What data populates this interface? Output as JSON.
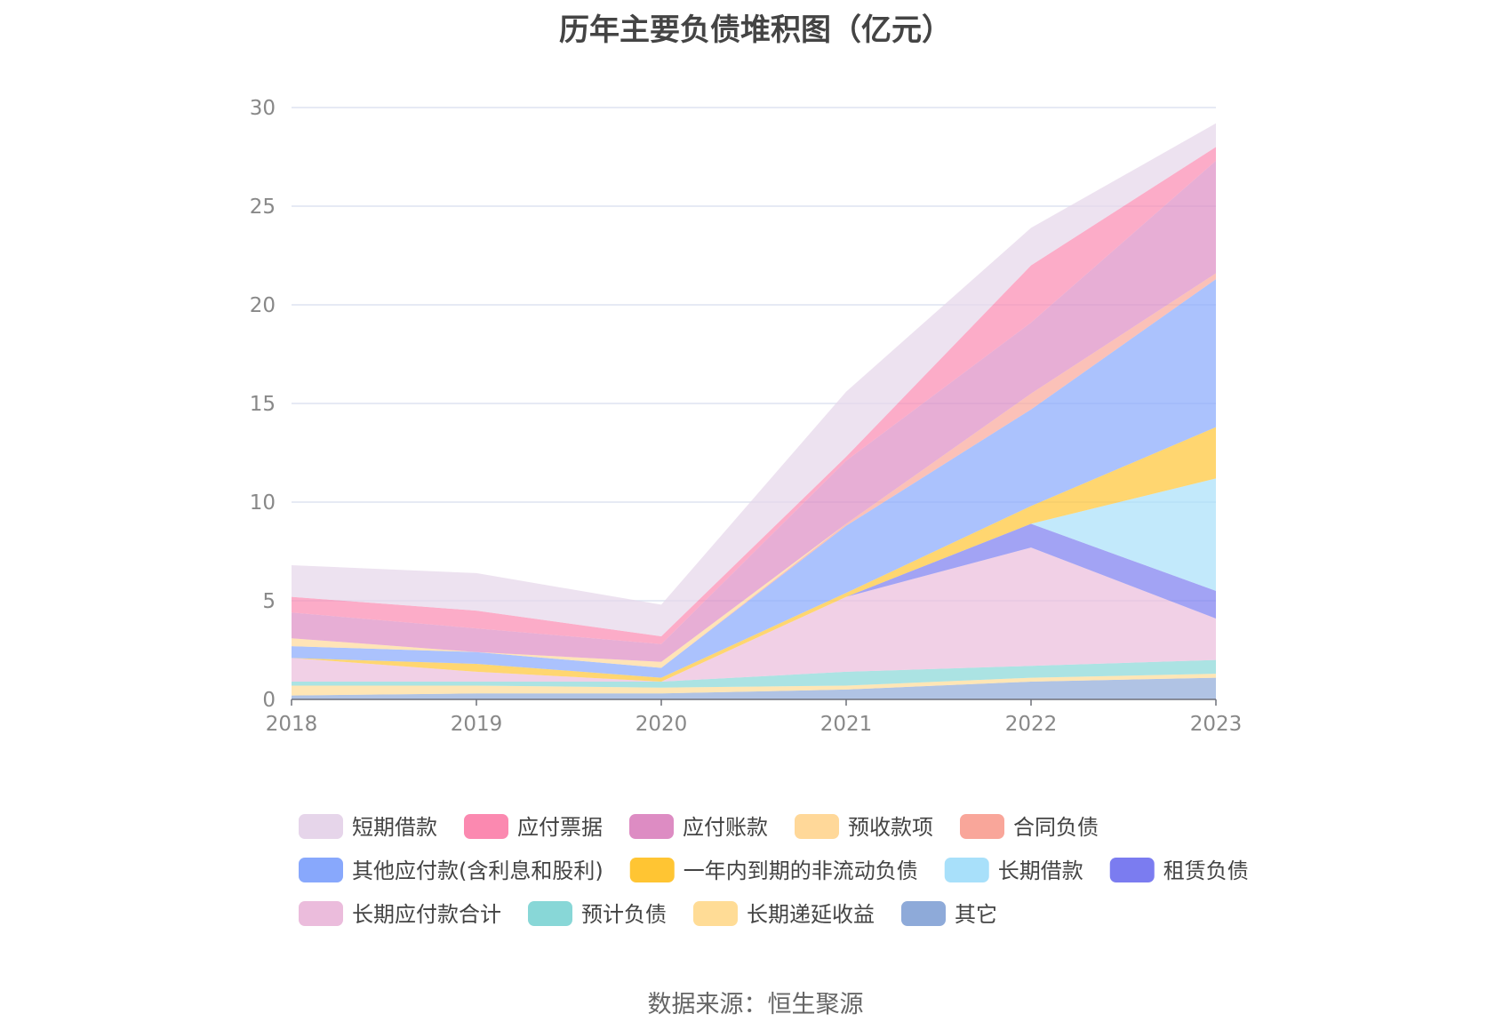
{
  "chart_data": {
    "type": "area",
    "stacked": true,
    "title": "历年主要负债堆积图（亿元）",
    "source": "数据来源：恒生聚源",
    "x": [
      "2018",
      "2019",
      "2020",
      "2021",
      "2022",
      "2023"
    ],
    "ylim": [
      0,
      30
    ],
    "yticks": [
      "0",
      "5",
      "10",
      "15",
      "20",
      "25",
      "30"
    ],
    "grid": true,
    "legend_position": "bottom",
    "series": [
      {
        "name": "其它",
        "color": "#8eaad9",
        "values": [
          0.2,
          0.3,
          0.3,
          0.5,
          0.9,
          1.1
        ]
      },
      {
        "name": "长期递延收益",
        "color": "#ffdc96",
        "values": [
          0.5,
          0.4,
          0.3,
          0.2,
          0.2,
          0.2
        ]
      },
      {
        "name": "预计负债",
        "color": "#88d7d7",
        "values": [
          0.2,
          0.2,
          0.3,
          0.7,
          0.6,
          0.7
        ]
      },
      {
        "name": "长期应付款合计",
        "color": "#ebbcdc",
        "values": [
          1.2,
          0.5,
          0.0,
          3.8,
          6.0,
          2.1
        ]
      },
      {
        "name": "租赁负债",
        "color": "#7b7cf0",
        "values": [
          0.0,
          0.0,
          0.0,
          0.0,
          1.2,
          1.4
        ]
      },
      {
        "name": "长期借款",
        "color": "#a8e0fa",
        "values": [
          0.0,
          0.0,
          0.0,
          0.0,
          0.0,
          5.7
        ]
      },
      {
        "name": "一年内到期的非流动负债",
        "color": "#ffc533",
        "values": [
          0.0,
          0.4,
          0.2,
          0.2,
          0.9,
          2.6
        ]
      },
      {
        "name": "其他应付款(含利息和股利)",
        "color": "#88a8fc",
        "values": [
          0.6,
          0.6,
          0.5,
          3.4,
          4.9,
          7.5
        ]
      },
      {
        "name": "合同负债",
        "color": "#f9a69a",
        "values": [
          0.0,
          0.0,
          0.0,
          0.1,
          0.8,
          0.3
        ]
      },
      {
        "name": "预收款项",
        "color": "#ffd899",
        "values": [
          0.4,
          0.0,
          0.3,
          0.0,
          0.0,
          0.0
        ]
      },
      {
        "name": "应付账款",
        "color": "#dd8cc3",
        "values": [
          1.3,
          1.2,
          0.9,
          3.2,
          3.6,
          5.7
        ]
      },
      {
        "name": "应付票据",
        "color": "#fb89b0",
        "values": [
          0.8,
          0.9,
          0.4,
          0.2,
          2.9,
          0.7
        ]
      },
      {
        "name": "短期借款",
        "color": "#e6d5ea",
        "values": [
          1.6,
          1.9,
          1.6,
          3.3,
          1.9,
          1.2
        ]
      }
    ],
    "legend_order": [
      "短期借款",
      "应付票据",
      "应付账款",
      "预收款项",
      "合同负债",
      "其他应付款(含利息和股利)",
      "一年内到期的非流动负债",
      "长期借款",
      "租赁负债",
      "长期应付款合计",
      "预计负债",
      "长期递延收益",
      "其它"
    ]
  }
}
